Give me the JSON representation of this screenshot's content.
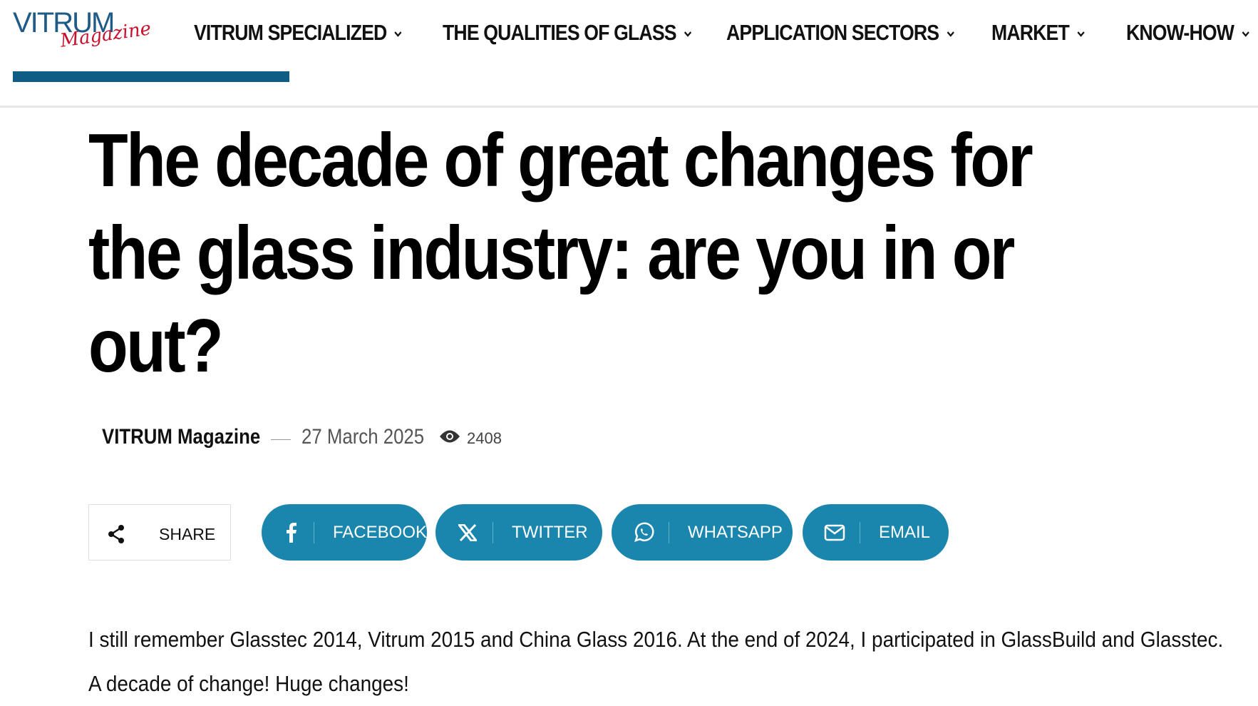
{
  "header": {
    "logo": {
      "main": "VITRUM",
      "script": "Magazine"
    },
    "nav": [
      "VITRUM SPECIALIZED",
      "THE QUALITIES OF GLASS",
      "APPLICATION SECTORS",
      "MARKET",
      "KNOW-HOW"
    ]
  },
  "article": {
    "title": "The decade of great changes for the glass industry: are you in or out?",
    "author": "VITRUM Magazine",
    "date": "27 March 2025",
    "views": 2408,
    "share": {
      "label": "SHARE",
      "buttons": [
        "FACEBOOK",
        "TWITTER",
        "WHATSAPP",
        "EMAIL"
      ]
    },
    "paragraph": "I still remember Glasstec 2014, Vitrum 2015 and China Glass 2016. At the end of 2024, I participated in GlassBuild and Glasstec. A decade of change! Huge changes!"
  }
}
